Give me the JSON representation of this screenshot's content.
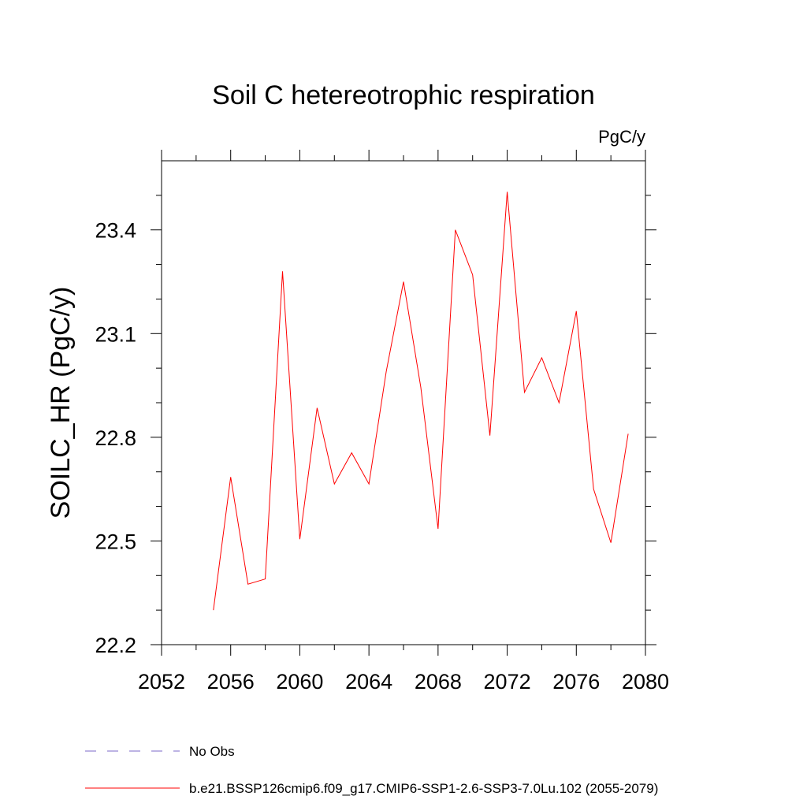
{
  "chart_data": {
    "type": "line",
    "title": "Soil C hetereotrophic respiration",
    "units_label": "PgC/y",
    "ylabel": "SOILC_HR  (PgC/y)",
    "xlabel": "",
    "xlim": [
      2052,
      2080
    ],
    "ylim": [
      22.2,
      23.6
    ],
    "x_ticks": [
      2052,
      2056,
      2060,
      2064,
      2068,
      2072,
      2076,
      2080
    ],
    "x_minor_ticks": [
      2054,
      2058,
      2062,
      2066,
      2070,
      2074,
      2078
    ],
    "y_ticks": [
      22.2,
      22.5,
      22.8,
      23.1,
      23.4
    ],
    "y_minor_ticks": [
      22.3,
      22.4,
      22.6,
      22.7,
      22.9,
      23.0,
      23.2,
      23.3,
      23.5
    ],
    "y_tick_decimals": 1,
    "grid": false,
    "legend_position": "bottom",
    "series": [
      {
        "name": "b.e21.BSSP126cmip6.f09_g17.CMIP6-SSP1-2.6-SSP3-7.0Lu.102 (2055-2079)",
        "color": "#ff0000",
        "style": "solid",
        "x": [
          2055,
          2056,
          2057,
          2058,
          2059,
          2060,
          2061,
          2062,
          2063,
          2064,
          2065,
          2066,
          2067,
          2068,
          2069,
          2070,
          2071,
          2072,
          2073,
          2074,
          2075,
          2076,
          2077,
          2078,
          2079
        ],
        "values": [
          22.3,
          22.685,
          22.375,
          22.39,
          23.28,
          22.505,
          22.885,
          22.665,
          22.755,
          22.665,
          22.99,
          23.25,
          22.945,
          22.535,
          23.4,
          23.27,
          22.805,
          23.51,
          22.93,
          23.03,
          22.9,
          23.165,
          22.65,
          22.495,
          22.81
        ]
      }
    ],
    "legend": [
      {
        "label": "No Obs",
        "color": "#7b68c8",
        "style": "dashed"
      },
      {
        "label": "b.e21.BSSP126cmip6.f09_g17.CMIP6-SSP1-2.6-SSP3-7.0Lu.102 (2055-2079)",
        "color": "#ff0000",
        "style": "solid"
      }
    ]
  }
}
